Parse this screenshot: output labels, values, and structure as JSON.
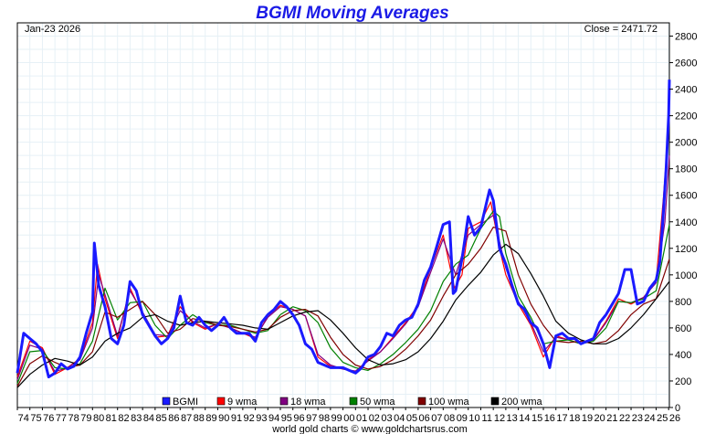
{
  "chart_data": {
    "type": "line",
    "title": "BGMI Moving Averages",
    "date_label": "Jan-23  2026",
    "close_label": "Close = 2471.72",
    "footer": "world gold charts © www.goldchartsrus.com",
    "ylim": [
      0,
      2900
    ],
    "yticks": [
      0,
      200,
      400,
      600,
      800,
      1000,
      1200,
      1400,
      1600,
      1800,
      2000,
      2200,
      2400,
      2600,
      2800
    ],
    "xlim": [
      1974.0,
      2026.06
    ],
    "xtick_years": [
      1974,
      1975,
      1976,
      1977,
      1978,
      1979,
      1980,
      1981,
      1982,
      1983,
      1984,
      1985,
      1986,
      1987,
      1988,
      1989,
      1990,
      1991,
      1992,
      1993,
      1994,
      1995,
      1996,
      1997,
      1998,
      1999,
      2000,
      2001,
      2002,
      2003,
      2004,
      2005,
      2006,
      2007,
      2008,
      2009,
      2010,
      2011,
      2012,
      2013,
      2014,
      2015,
      2016,
      2017,
      2018,
      2019,
      2020,
      2021,
      2022,
      2023,
      2024,
      2025,
      2026
    ],
    "xtick_labels": [
      "74",
      "75",
      "76",
      "77",
      "78",
      "79",
      "80",
      "81",
      "82",
      "83",
      "84",
      "85",
      "86",
      "87",
      "88",
      "89",
      "90",
      "91",
      "92",
      "93",
      "94",
      "95",
      "96",
      "97",
      "98",
      "99",
      "00",
      "01",
      "02",
      "03",
      "04",
      "05",
      "06",
      "07",
      "08",
      "09",
      "10",
      "11",
      "12",
      "13",
      "14",
      "15",
      "16",
      "17",
      "18",
      "19",
      "20",
      "21",
      "22",
      "23",
      "24",
      "25",
      "26"
    ],
    "grid": true,
    "legend_position": "bottom",
    "series": [
      {
        "name": "BGMI",
        "color": "#1a1aff",
        "width": 3,
        "x": [
          1974.0,
          1974.5,
          1975.0,
          1975.5,
          1976.0,
          1976.5,
          1977.0,
          1977.5,
          1978.0,
          1978.5,
          1979.0,
          1979.5,
          1980.0,
          1980.15,
          1980.5,
          1981.0,
          1981.5,
          1982.0,
          1982.5,
          1983.0,
          1983.5,
          1984.0,
          1984.5,
          1985.0,
          1985.5,
          1986.0,
          1986.5,
          1987.0,
          1987.5,
          1988.0,
          1988.5,
          1989.0,
          1989.5,
          1990.0,
          1990.5,
          1991.0,
          1991.5,
          1992.0,
          1992.5,
          1993.0,
          1993.5,
          1994.0,
          1994.5,
          1995.0,
          1995.5,
          1996.0,
          1996.5,
          1997.0,
          1997.5,
          1998.0,
          1998.5,
          1999.0,
          1999.5,
          2000.0,
          2000.5,
          2001.0,
          2001.5,
          2002.0,
          2002.5,
          2003.0,
          2003.5,
          2004.0,
          2004.5,
          2005.0,
          2005.5,
          2006.0,
          2006.5,
          2007.0,
          2007.5,
          2008.0,
          2008.5,
          2008.8,
          2009.0,
          2009.5,
          2010.0,
          2010.5,
          2011.0,
          2011.5,
          2011.7,
          2012.0,
          2012.5,
          2013.0,
          2013.5,
          2014.0,
          2014.5,
          2015.0,
          2015.5,
          2016.0,
          2016.5,
          2017.0,
          2017.5,
          2018.0,
          2018.5,
          2019.0,
          2019.5,
          2020.0,
          2020.5,
          2021.0,
          2021.5,
          2022.0,
          2022.5,
          2023.0,
          2023.5,
          2024.0,
          2024.5,
          2025.0,
          2025.3,
          2025.6,
          2025.8,
          2026.0,
          2026.06
        ],
        "y": [
          260,
          560,
          520,
          480,
          420,
          230,
          260,
          330,
          290,
          310,
          380,
          560,
          720,
          1240,
          920,
          760,
          520,
          480,
          620,
          950,
          880,
          700,
          620,
          540,
          480,
          520,
          600,
          840,
          640,
          620,
          680,
          620,
          580,
          620,
          680,
          600,
          560,
          560,
          560,
          500,
          640,
          700,
          740,
          800,
          760,
          700,
          620,
          480,
          440,
          340,
          320,
          300,
          300,
          300,
          280,
          260,
          300,
          380,
          400,
          460,
          560,
          540,
          620,
          660,
          680,
          780,
          960,
          1060,
          1220,
          1380,
          1400,
          860,
          880,
          1120,
          1440,
          1300,
          1360,
          1560,
          1640,
          1560,
          1200,
          1080,
          920,
          780,
          740,
          640,
          600,
          480,
          300,
          540,
          560,
          520,
          520,
          480,
          500,
          520,
          640,
          700,
          780,
          860,
          1040,
          1040,
          780,
          800,
          900,
          960,
          1100,
          1500,
          1800,
          2200,
          2471.72
        ]
      },
      {
        "name": "9 wma",
        "color": "#ff0000",
        "width": 1.2,
        "x": [
          1974.0,
          1975.0,
          1976.0,
          1977.0,
          1978.0,
          1979.0,
          1980.0,
          1980.4,
          1981.0,
          1982.0,
          1983.0,
          1984.0,
          1985.0,
          1986.0,
          1987.0,
          1988.0,
          1989.0,
          1990.0,
          1991.0,
          1992.0,
          1993.0,
          1994.0,
          1995.0,
          1996.0,
          1997.0,
          1998.0,
          1999.0,
          2000.0,
          2001.0,
          2002.0,
          2003.0,
          2004.0,
          2005.0,
          2006.0,
          2007.0,
          2008.0,
          2008.9,
          2009.5,
          2010.0,
          2011.0,
          2011.8,
          2012.5,
          2013.0,
          2014.0,
          2015.0,
          2016.0,
          2017.0,
          2018.0,
          2019.0,
          2020.0,
          2021.0,
          2022.0,
          2023.0,
          2024.0,
          2025.0,
          2025.6,
          2026.06
        ],
        "y": [
          230,
          500,
          450,
          250,
          300,
          370,
          640,
          1080,
          820,
          520,
          900,
          700,
          530,
          540,
          760,
          640,
          590,
          630,
          600,
          560,
          520,
          690,
          770,
          740,
          690,
          380,
          310,
          290,
          270,
          360,
          420,
          530,
          640,
          770,
          1050,
          1300,
          900,
          1000,
          1350,
          1400,
          1550,
          1200,
          1000,
          780,
          620,
          380,
          540,
          510,
          480,
          510,
          650,
          820,
          780,
          830,
          950,
          1600,
          2200
        ]
      },
      {
        "name": "18 wma",
        "color": "#800080",
        "width": 1.2,
        "x": [
          1974.0,
          1975.0,
          1976.0,
          1977.0,
          1978.0,
          1979.0,
          1980.0,
          1980.5,
          1981.0,
          1982.0,
          1983.0,
          1984.0,
          1985.0,
          1986.0,
          1987.0,
          1988.0,
          1989.0,
          1990.0,
          1991.0,
          1992.0,
          1993.0,
          1994.0,
          1995.0,
          1996.0,
          1997.0,
          1998.0,
          1999.0,
          2000.0,
          2001.0,
          2002.0,
          2003.0,
          2004.0,
          2005.0,
          2006.0,
          2007.0,
          2008.0,
          2009.0,
          2010.0,
          2011.0,
          2012.0,
          2013.0,
          2014.0,
          2015.0,
          2016.0,
          2017.0,
          2018.0,
          2019.0,
          2020.0,
          2021.0,
          2022.0,
          2023.0,
          2024.0,
          2025.0,
          2025.7,
          2026.06
        ],
        "y": [
          210,
          470,
          440,
          270,
          300,
          360,
          600,
          1000,
          850,
          540,
          880,
          720,
          550,
          540,
          730,
          650,
          600,
          630,
          600,
          560,
          530,
          680,
          760,
          740,
          690,
          400,
          320,
          290,
          275,
          350,
          420,
          520,
          630,
          760,
          1020,
          1270,
          1000,
          1300,
          1380,
          1450,
          1050,
          800,
          640,
          420,
          530,
          510,
          480,
          510,
          640,
          800,
          790,
          830,
          940,
          1400,
          1900
        ]
      },
      {
        "name": "50 wma",
        "color": "#008000",
        "width": 1.2,
        "x": [
          1974.0,
          1975.0,
          1976.0,
          1977.0,
          1978.0,
          1979.0,
          1980.0,
          1981.0,
          1982.0,
          1983.0,
          1984.0,
          1985.0,
          1986.0,
          1987.0,
          1988.0,
          1989.0,
          1990.0,
          1991.0,
          1992.0,
          1993.0,
          1994.0,
          1995.0,
          1996.0,
          1997.0,
          1998.0,
          1999.0,
          2000.0,
          2001.0,
          2002.0,
          2003.0,
          2004.0,
          2005.0,
          2006.0,
          2007.0,
          2008.0,
          2009.0,
          2010.0,
          2011.0,
          2012.0,
          2012.5,
          2013.0,
          2014.0,
          2015.0,
          2016.0,
          2017.0,
          2018.0,
          2019.0,
          2020.0,
          2021.0,
          2022.0,
          2023.0,
          2024.0,
          2025.0,
          2026.06
        ],
        "y": [
          180,
          420,
          430,
          300,
          290,
          330,
          500,
          900,
          660,
          790,
          800,
          620,
          520,
          620,
          700,
          640,
          620,
          620,
          590,
          560,
          580,
          700,
          760,
          730,
          640,
          450,
          340,
          300,
          280,
          330,
          400,
          490,
          590,
          730,
          950,
          1080,
          1150,
          1350,
          1480,
          1440,
          1160,
          840,
          680,
          480,
          500,
          510,
          480,
          500,
          600,
          800,
          790,
          820,
          880,
          1380
        ]
      },
      {
        "name": "100 wma",
        "color": "#800000",
        "width": 1.2,
        "x": [
          1974.0,
          1975.0,
          1976.0,
          1977.0,
          1978.0,
          1979.0,
          1980.0,
          1981.0,
          1982.0,
          1983.0,
          1984.0,
          1985.0,
          1986.0,
          1987.0,
          1988.0,
          1989.0,
          1990.0,
          1991.0,
          1992.0,
          1993.0,
          1994.0,
          1995.0,
          1996.0,
          1997.0,
          1998.0,
          1999.0,
          2000.0,
          2001.0,
          2002.0,
          2003.0,
          2004.0,
          2005.0,
          2006.0,
          2007.0,
          2008.0,
          2009.0,
          2010.0,
          2011.0,
          2012.0,
          2013.0,
          2014.0,
          2015.0,
          2016.0,
          2017.0,
          2018.0,
          2019.0,
          2020.0,
          2021.0,
          2022.0,
          2023.0,
          2024.0,
          2025.0,
          2026.06
        ],
        "y": [
          160,
          330,
          390,
          340,
          300,
          320,
          420,
          720,
          680,
          740,
          800,
          700,
          560,
          590,
          670,
          650,
          620,
          610,
          590,
          570,
          590,
          680,
          730,
          740,
          690,
          530,
          400,
          320,
          290,
          310,
          360,
          440,
          540,
          660,
          840,
          1000,
          1080,
          1200,
          1360,
          1330,
          1000,
          780,
          620,
          500,
          490,
          500,
          480,
          500,
          580,
          700,
          780,
          820,
          1120
        ]
      },
      {
        "name": "200 wma",
        "color": "#000000",
        "width": 1.2,
        "x": [
          1974.0,
          1975.0,
          1976.0,
          1977.0,
          1978.0,
          1979.0,
          1980.0,
          1981.0,
          1982.0,
          1983.0,
          1984.0,
          1985.0,
          1986.0,
          1987.0,
          1988.0,
          1989.0,
          1990.0,
          1991.0,
          1992.0,
          1993.0,
          1994.0,
          1995.0,
          1996.0,
          1997.0,
          1998.0,
          1999.0,
          2000.0,
          2001.0,
          2002.0,
          2003.0,
          2004.0,
          2005.0,
          2006.0,
          2007.0,
          2008.0,
          2009.0,
          2010.0,
          2011.0,
          2012.0,
          2013.0,
          2014.0,
          2015.0,
          2016.0,
          2017.0,
          2018.0,
          2019.0,
          2020.0,
          2021.0,
          2022.0,
          2023.0,
          2024.0,
          2025.0,
          2026.06
        ],
        "y": [
          150,
          250,
          320,
          370,
          350,
          320,
          380,
          500,
          560,
          600,
          680,
          700,
          650,
          620,
          640,
          650,
          640,
          630,
          620,
          600,
          590,
          640,
          690,
          720,
          730,
          660,
          560,
          450,
          360,
          320,
          330,
          360,
          420,
          520,
          650,
          810,
          920,
          1020,
          1150,
          1230,
          1160,
          1010,
          840,
          650,
          560,
          510,
          480,
          480,
          520,
          600,
          700,
          820,
          950
        ]
      }
    ]
  }
}
